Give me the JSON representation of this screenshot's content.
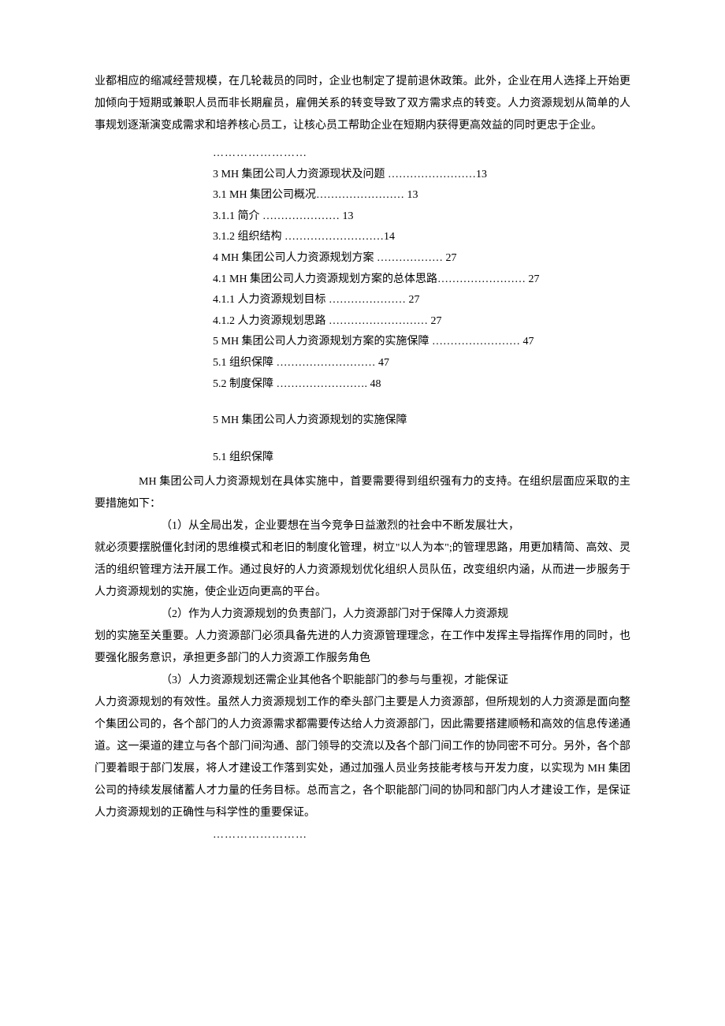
{
  "opening_paragraph": "业都相应的缩减经营规模，在几轮裁员的同时，企业也制定了提前退休政策。此外，企业在用人选择上开始更加倾向于短期或兼职人员而非长期雇员，雇佣关系的转变导致了双方需求点的转变。人力资源规划从简单的人事规划逐渐演变成需求和培养核心员工，让核心员工帮助企业在短期内获得更高效益的同时更忠于企业。",
  "toc_ellipsis_top": "……………………",
  "toc": [
    "3 MH 集团公司人力资源现状及问题 ……………………13",
    "3.1 MH 集团公司概况…………………… 13",
    "3.1.1 简介 ………………… 13",
    "3.1.2 组织结构 ………………………14",
    "4 MH 集团公司人力资源规划方案 ……………… 27",
    "4.1 MH 集团公司人力资源规划方案的总体思路…………………… 27",
    "4.1.1 人力资源规划目标 ………………… 27",
    "4.1.2 人力资源规划思路 ……………………… 27",
    "5 MH 集团公司人力资源规划方案的实施保障 …………………… 47",
    "5.1 组织保障 ……………………… 47",
    "5.2 制度保障 ……………………. 48"
  ],
  "chapter_title": "5 MH 集团公司人力资源规划的实施保障",
  "section_5_1_title": "5.1 组织保障",
  "section_5_1_intro": "MH  集团公司人力资源规划在具体实施中，首要需要得到组织强有力的支持。在组织层面应采取的主要措施如下：",
  "section_5_1_point1_prefix": "（1）从全局出发，企业要想在当今竞争日益激烈的社会中不断发展壮大，",
  "section_5_1_point1_rest": "就必须要摆脱僵化封闭的思维模式和老旧的制度化管理，树立\"以人为本\";的管理思路，用更加精简、高效、灵活的组织管理方法开展工作。通过良好的人力资源规划优化组织人员队伍，改变组织内涵，从而进一步服务于人力资源规划的实施，使企业迈向更高的平台。",
  "section_5_1_point2_prefix": "（2）作为人力资源规划的负责部门，人力资源部门对于保障人力资源规",
  "section_5_1_point2_rest": "划的实施至关重要。人力资源部门必须具备先进的人力资源管理理念，在工作中发挥主导指挥作用的同时，也要强化服务意识，承担更多部门的人力资源工作服务角色",
  "section_5_1_point3_prefix": "（3）人力资源规划还需企业其他各个职能部门的参与与重视，才能保证",
  "section_5_1_point3_rest": "人力资源规划的有效性。虽然人力资源规划工作的牵头部门主要是人力资源部，但所规划的人力资源是面向整个集团公司的，各个部门的人力资源需求都需要传达给人力资源部门，因此需要搭建顺畅和高效的信息传递通道。这一渠道的建立与各个部门间沟通、部门领导的交流以及各个部门间工作的协同密不可分。另外，各个部门要着眼于部门发展，将人才建设工作落到实处，通过加强人员业务技能考核与开发力度，以实现为 MH 集团公司的持续发展储蓄人才力量的任务目标。总而言之，各个职能部门间的协同和部门内人才建设工作，是保证人力资源规划的正确性与科学性的重要保证。",
  "footer_ellipsis": "……………………"
}
